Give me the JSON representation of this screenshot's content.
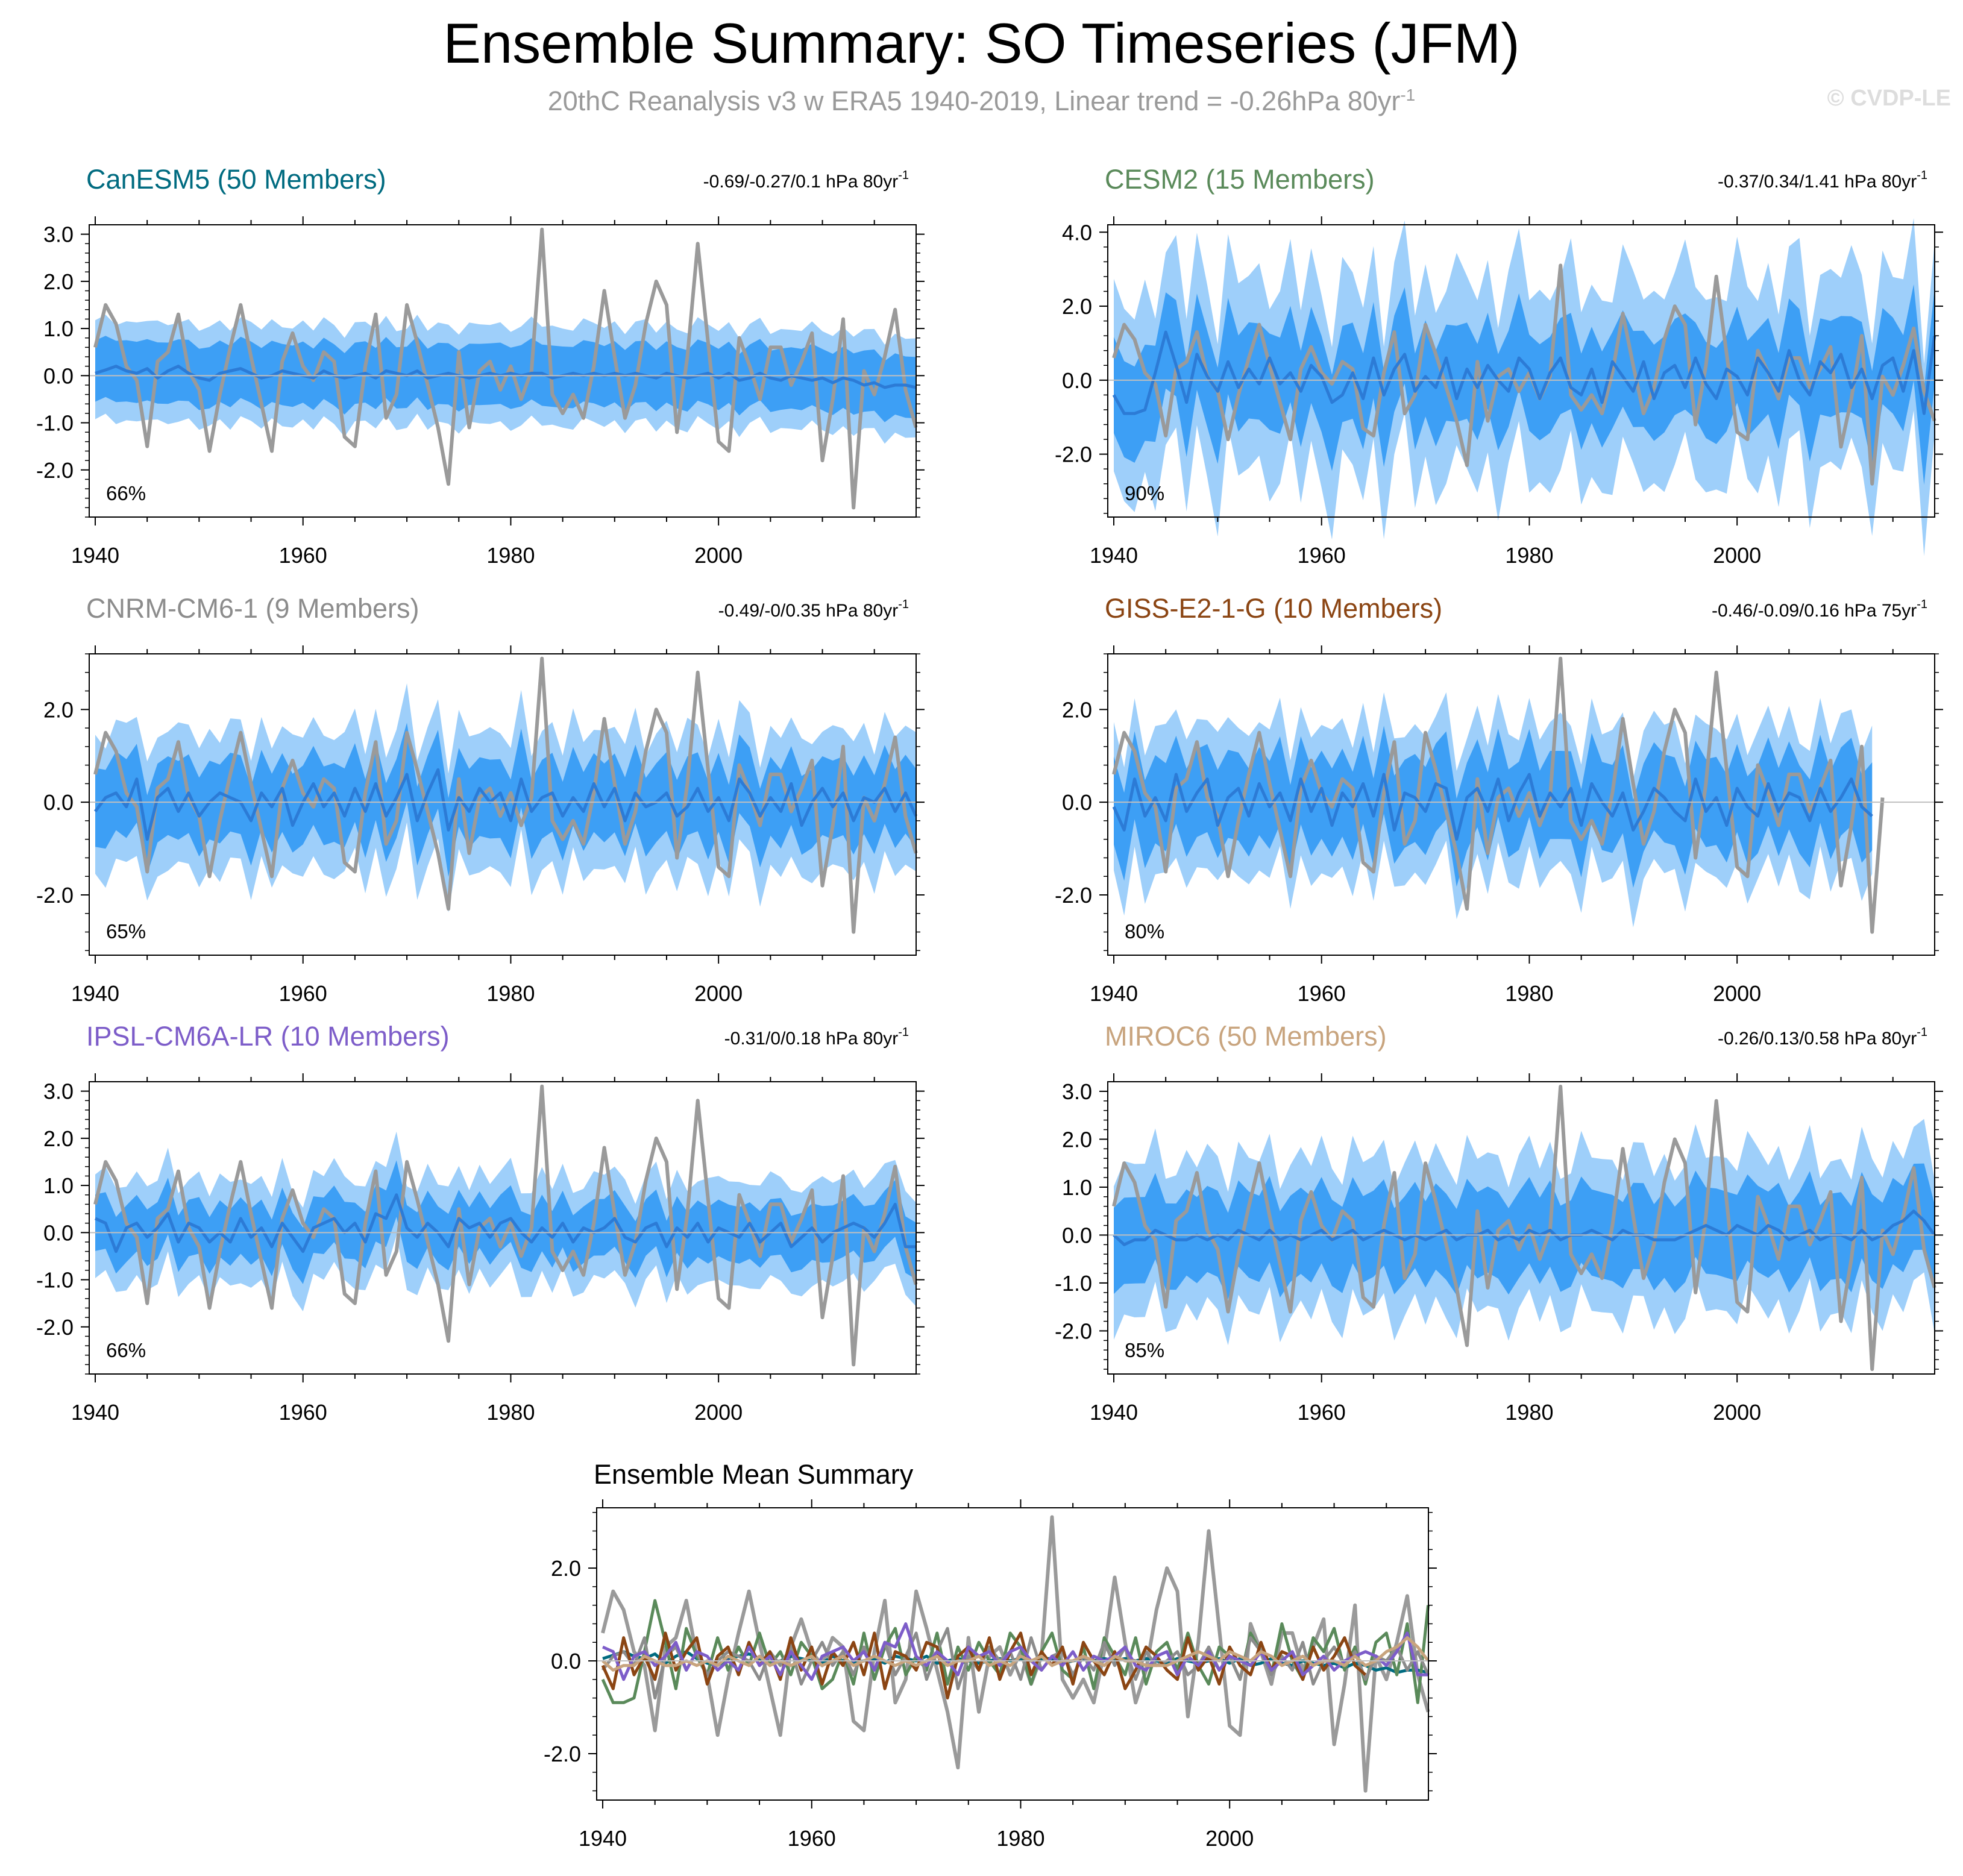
{
  "header": {
    "title": "Ensemble Summary: SO Timeseries (JFM)",
    "subtitle_main": "20thC Reanalysis v3 w ERA5 1940-2019, Linear trend = -0.26hPa 80yr",
    "subtitle_sup": "-1",
    "copyright": "© CVDP-LE"
  },
  "colors": {
    "obs_line": "#9a9a9a",
    "band_outer": "#9ecffa",
    "band_inner": "#3d9ff5",
    "ens_mean_line": "#2c7bd6",
    "zero_line": "#bfbfbf"
  },
  "chart_data": {
    "type": "line",
    "x_range": [
      1940,
      2019
    ],
    "x_ticks": [
      "1940",
      "1960",
      "1980",
      "2000"
    ],
    "observed": {
      "name": "20thC Reanalysis v3 w ERA5",
      "x_start": 1940,
      "values": [
        0.6,
        1.5,
        1.1,
        0.2,
        -0.1,
        -1.5,
        0.3,
        0.5,
        1.3,
        0.1,
        -0.3,
        -1.6,
        -0.4,
        0.6,
        1.5,
        0.4,
        -0.6,
        -1.6,
        0.3,
        0.9,
        0.2,
        -0.1,
        0.5,
        0.3,
        -1.3,
        -1.5,
        0.2,
        1.3,
        -0.9,
        -0.4,
        1.5,
        0.7,
        -0.2,
        -1.1,
        -2.3,
        0.5,
        -1.1,
        0.1,
        0.3,
        -0.3,
        0.2,
        -0.5,
        0.1,
        3.1,
        -0.4,
        -0.8,
        -0.4,
        -0.9,
        0.2,
        1.8,
        0.4,
        -0.9,
        -0.2,
        1.1,
        2.0,
        1.5,
        -1.2,
        0.4,
        2.8,
        0.7,
        -1.4,
        -1.6,
        0.8,
        0.2,
        -0.5,
        0.6,
        0.6,
        -0.2,
        0.3,
        0.9,
        -1.8,
        -0.5,
        1.2,
        -2.8,
        0.1,
        -0.4,
        0.4,
        1.4,
        -0.3,
        -1.1
      ]
    },
    "panels": [
      {
        "title": "CanESM5 (50 Members)",
        "title_color": "#006b80",
        "stats": "-0.69/-0.27/0.1 hPa 80yr",
        "stats_sup": "-1",
        "percent": "66%",
        "ylim": [
          -3.0,
          3.2
        ],
        "y_ticks": [
          -2.0,
          -1.0,
          0.0,
          1.0,
          2.0,
          3.0
        ],
        "y_tick_labels": [
          "-2.0",
          "-1.0",
          "0.0",
          "1.0",
          "2.0",
          "3.0"
        ],
        "x_end": 2019,
        "ens_mean": [
          0.05,
          0.12,
          0.2,
          0.1,
          0.05,
          0.15,
          -0.05,
          0.1,
          0.2,
          0.05,
          -0.05,
          -0.1,
          0.05,
          0.1,
          0.15,
          0.05,
          -0.05,
          0.0,
          0.1,
          0.05,
          0.0,
          -0.05,
          0.1,
          0.0,
          -0.05,
          0.0,
          0.05,
          -0.05,
          0.1,
          0.05,
          0.0,
          0.1,
          -0.05,
          0.0,
          0.05,
          0.0,
          -0.05,
          0.0,
          0.05,
          0.0,
          0.05,
          0.0,
          0.05,
          0.05,
          -0.05,
          0.0,
          0.05,
          0.0,
          0.05,
          0.0,
          0.05,
          0.0,
          0.05,
          0.0,
          -0.05,
          0.05,
          0.0,
          -0.05,
          0.0,
          0.05,
          -0.05,
          0.05,
          -0.1,
          -0.05,
          0.05,
          -0.05,
          -0.1,
          0.0,
          -0.05,
          -0.1,
          -0.05,
          -0.15,
          -0.05,
          -0.1,
          -0.2,
          -0.15,
          -0.25,
          -0.2,
          -0.2,
          -0.25
        ],
        "inner_spread": 0.65,
        "outer_spread": 1.05,
        "band_amp": 0.12
      },
      {
        "title": "CESM2 (15 Members)",
        "title_color": "#5a8a5a",
        "stats": "-0.37/0.34/1.41 hPa 80yr",
        "stats_sup": "-1",
        "percent": "90%",
        "ylim": [
          -3.7,
          4.2
        ],
        "y_ticks": [
          -2.0,
          0.0,
          2.0,
          4.0
        ],
        "y_tick_labels": [
          "-2.0",
          "0.0",
          "2.0",
          "4.0"
        ],
        "x_end": 2019,
        "ens_mean": [
          -0.4,
          -0.9,
          -0.9,
          -0.8,
          0.2,
          1.3,
          0.4,
          -0.6,
          0.7,
          0.1,
          -0.3,
          0.5,
          -0.2,
          0.3,
          -0.1,
          0.6,
          -0.1,
          0.2,
          -0.3,
          0.4,
          0.1,
          -0.6,
          -0.4,
          0.2,
          -0.5,
          0.6,
          -0.4,
          0.3,
          0.7,
          -0.3,
          0.1,
          -0.2,
          0.6,
          -0.5,
          0.3,
          -0.2,
          0.4,
          0.0,
          -0.3,
          0.6,
          0.3,
          -0.5,
          0.2,
          0.6,
          -0.2,
          -0.4,
          0.3,
          -0.6,
          0.5,
          0.1,
          -0.3,
          0.5,
          -0.5,
          0.2,
          0.4,
          -0.2,
          0.6,
          -0.1,
          -0.5,
          0.3,
          0.1,
          -0.4,
          0.6,
          0.2,
          -0.3,
          0.8,
          0.0,
          -0.4,
          0.5,
          0.2,
          0.7,
          -0.2,
          0.3,
          -0.5,
          0.4,
          0.6,
          -0.3,
          0.8,
          -0.9,
          1.2
        ],
        "inner_spread": 1.3,
        "outer_spread": 2.6,
        "band_amp": 0.35
      },
      {
        "title": "CNRM-CM6-1 (9 Members)",
        "title_color": "#8c8c8c",
        "stats": "-0.49/-0/0.35 hPa 80yr",
        "stats_sup": "-1",
        "percent": "65%",
        "ylim": [
          -3.3,
          3.2
        ],
        "y_ticks": [
          -2.0,
          0.0,
          2.0
        ],
        "y_tick_labels": [
          "-2.0",
          "0.0",
          "2.0"
        ],
        "x_end": 2019,
        "ens_mean": [
          -0.2,
          0.1,
          0.2,
          -0.1,
          0.5,
          -0.8,
          0.1,
          0.3,
          -0.2,
          0.2,
          -0.3,
          0.0,
          0.2,
          0.1,
          0.0,
          -0.4,
          0.2,
          -0.1,
          0.3,
          -0.5,
          0.0,
          0.4,
          -0.1,
          0.2,
          -0.3,
          0.3,
          -0.2,
          0.4,
          -0.3,
          0.1,
          0.6,
          -0.4,
          0.2,
          0.7,
          -0.6,
          0.1,
          -0.2,
          0.3,
          0.0,
          0.2,
          -0.4,
          0.5,
          -0.2,
          0.1,
          0.2,
          -0.3,
          0.1,
          -0.2,
          0.4,
          -0.1,
          0.3,
          -0.4,
          0.2,
          -0.1,
          0.0,
          0.2,
          -0.3,
          -0.1,
          0.3,
          -0.2,
          0.1,
          -0.4,
          0.5,
          0.2,
          -0.3,
          0.1,
          -0.2,
          0.4,
          -0.5,
          0.0,
          0.3,
          -0.1,
          0.2,
          -0.4,
          0.1,
          0.0,
          0.3,
          -0.2,
          0.2,
          -0.3
        ],
        "inner_spread": 0.85,
        "outer_spread": 1.5,
        "band_amp": 0.2
      },
      {
        "title": "GISS-E2-1-G (10 Members)",
        "title_color": "#8b4513",
        "stats": "-0.46/-0.09/0.16 hPa 75yr",
        "stats_sup": "-1",
        "percent": "80%",
        "ylim": [
          -3.3,
          3.2
        ],
        "y_ticks": [
          -2.0,
          0.0,
          2.0
        ],
        "y_tick_labels": [
          "-2.0",
          "0.0",
          "2.0"
        ],
        "x_end": 2014,
        "ens_mean": [
          -0.1,
          -0.6,
          0.5,
          -0.3,
          0.1,
          -0.4,
          0.6,
          -0.2,
          0.2,
          0.5,
          -0.5,
          0.1,
          0.3,
          -0.3,
          0.4,
          -0.1,
          0.2,
          -0.4,
          0.5,
          -0.2,
          0.3,
          -0.5,
          0.2,
          -0.1,
          0.4,
          -0.3,
          0.6,
          -0.6,
          0.2,
          0.1,
          -0.2,
          0.4,
          0.3,
          -0.8,
          0.1,
          0.3,
          -0.2,
          0.5,
          -0.4,
          0.2,
          0.6,
          -0.3,
          0.2,
          -0.1,
          0.3,
          -0.5,
          0.4,
          0.0,
          -0.3,
          0.2,
          -0.6,
          -0.2,
          0.3,
          0.1,
          -0.2,
          -0.4,
          0.5,
          -0.2,
          0.1,
          -0.5,
          0.3,
          -0.1,
          -0.3,
          0.4,
          -0.2,
          0.2,
          0.1,
          -0.4,
          0.3,
          -0.2,
          0.1,
          0.5,
          -0.1,
          -0.3
        ],
        "inner_spread": 0.95,
        "outer_spread": 1.6,
        "band_amp": 0.2
      },
      {
        "title": "IPSL-CM6A-LR (10 Members)",
        "title_color": "#7d5dc9",
        "stats": "-0.31/0/0.18 hPa 80yr",
        "stats_sup": "-1",
        "percent": "66%",
        "ylim": [
          -3.0,
          3.2
        ],
        "y_ticks": [
          -2.0,
          -1.0,
          0.0,
          1.0,
          2.0,
          3.0
        ],
        "y_tick_labels": [
          "-2.0",
          "-1.0",
          "0.0",
          "1.0",
          "2.0",
          "3.0"
        ],
        "x_end": 2019,
        "ens_mean": [
          0.3,
          0.2,
          -0.4,
          0.1,
          0.2,
          -0.1,
          0.1,
          0.4,
          -0.2,
          0.2,
          0.1,
          -0.2,
          0.0,
          -0.2,
          0.3,
          -0.1,
          0.1,
          -0.3,
          0.2,
          -0.1,
          -0.4,
          0.1,
          0.2,
          0.3,
          0.0,
          0.2,
          -0.2,
          0.4,
          0.3,
          0.8,
          0.1,
          -0.1,
          0.2,
          0.0,
          -0.3,
          0.3,
          0.1,
          0.2,
          -0.1,
          0.2,
          0.3,
          0.0,
          -0.2,
          0.1,
          -0.1,
          0.2,
          -0.2,
          0.1,
          0.0,
          0.1,
          0.3,
          -0.1,
          -0.2,
          0.1,
          0.2,
          -0.3,
          0.1,
          -0.1,
          0.2,
          -0.2,
          0.1,
          0.0,
          -0.1,
          0.2,
          -0.2,
          0.0,
          0.2,
          -0.3,
          -0.1,
          0.1,
          -0.2,
          0.0,
          0.1,
          0.2,
          0.1,
          -0.1,
          0.2,
          0.6,
          -0.3,
          -0.3
        ],
        "inner_spread": 0.6,
        "outer_spread": 1.1,
        "band_amp": 0.18
      },
      {
        "title": "MIROC6 (50 Members)",
        "title_color": "#c8a47e",
        "stats": "-0.26/0.13/0.58 hPa 80yr",
        "stats_sup": "-1",
        "percent": "85%",
        "ylim": [
          -2.9,
          3.2
        ],
        "y_ticks": [
          -2.0,
          -1.0,
          0.0,
          1.0,
          2.0,
          3.0
        ],
        "y_tick_labels": [
          "-2.0",
          "-1.0",
          "0.0",
          "1.0",
          "2.0",
          "3.0"
        ],
        "x_end": 2019,
        "ens_mean": [
          0.0,
          -0.2,
          -0.1,
          -0.1,
          0.1,
          0.0,
          -0.1,
          -0.1,
          0.0,
          -0.1,
          0.0,
          -0.1,
          0.1,
          0.0,
          -0.1,
          0.1,
          -0.1,
          0.0,
          -0.1,
          0.0,
          0.1,
          -0.1,
          0.0,
          0.1,
          -0.1,
          0.0,
          0.1,
          0.0,
          -0.1,
          0.0,
          -0.1,
          0.0,
          0.1,
          -0.1,
          0.0,
          0.0,
          0.1,
          -0.1,
          0.0,
          -0.1,
          0.1,
          0.0,
          0.1,
          -0.1,
          0.0,
          0.0,
          0.1,
          0.0,
          -0.1,
          0.1,
          0.0,
          0.0,
          -0.1,
          -0.1,
          -0.1,
          0.0,
          0.1,
          0.2,
          0.1,
          0.0,
          0.2,
          0.1,
          0.0,
          0.2,
          0.1,
          -0.1,
          0.0,
          0.1,
          -0.1,
          0.0,
          0.0,
          -0.1,
          0.1,
          -0.1,
          0.0,
          0.2,
          0.3,
          0.5,
          0.3,
          0.0
        ],
        "inner_spread": 0.9,
        "outer_spread": 1.6,
        "band_amp": 0.25
      }
    ],
    "mean_summary": {
      "title": "Ensemble Mean Summary",
      "ylim": [
        -3.0,
        3.3
      ],
      "y_ticks": [
        -2.0,
        0.0,
        2.0
      ],
      "y_tick_labels": [
        "-2.0",
        "0.0",
        "2.0"
      ]
    }
  }
}
